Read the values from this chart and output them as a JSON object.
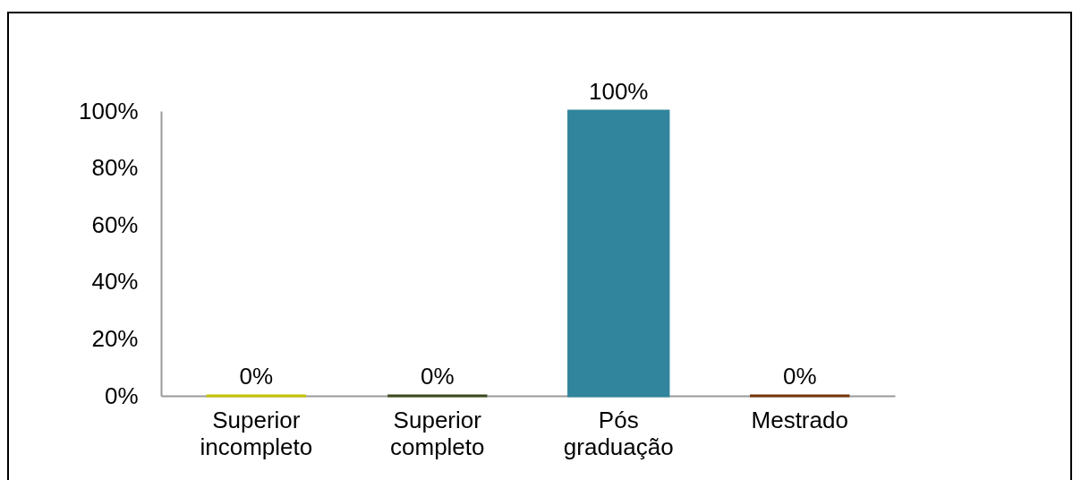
{
  "chart_data": {
    "type": "bar",
    "categories": [
      "Superior incompleto",
      "Superior completo",
      "Pós graduação",
      "Mestrado"
    ],
    "values": [
      0,
      0,
      100,
      0
    ],
    "colors": [
      "#c5c400",
      "#3d4a1f",
      "#31859c",
      "#77370a"
    ],
    "value_labels": [
      "0%",
      "0%",
      "100%",
      "0%"
    ],
    "ylim": [
      0,
      100
    ],
    "yticks": [
      {
        "value": 0,
        "label": "0%"
      },
      {
        "value": 20,
        "label": "20%"
      },
      {
        "value": 40,
        "label": "40%"
      },
      {
        "value": 60,
        "label": "60%"
      },
      {
        "value": 80,
        "label": "80%"
      },
      {
        "value": 100,
        "label": "100%"
      }
    ]
  }
}
